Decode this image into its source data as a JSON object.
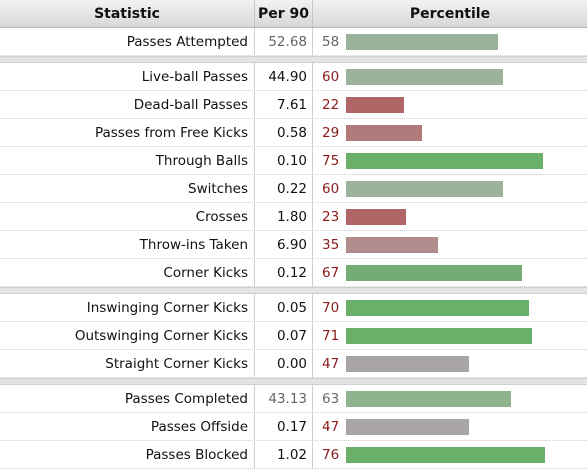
{
  "headers": {
    "statistic": "Statistic",
    "per90": "Per 90",
    "percentile": "Percentile"
  },
  "groups": [
    {
      "rows": [
        {
          "label": "Passes Attempted",
          "per90": "52.68",
          "percentile": 58,
          "per90_color": "#666666",
          "pct_color": "#666666",
          "bar_color": "#9bb39b"
        }
      ]
    },
    {
      "rows": [
        {
          "label": "Live-ball Passes",
          "per90": "44.90",
          "percentile": 60,
          "per90_color": "#111111",
          "pct_color": "#8b1a1a",
          "bar_color": "#9bb39b"
        },
        {
          "label": "Dead-ball Passes",
          "per90": "7.61",
          "percentile": 22,
          "per90_color": "#111111",
          "pct_color": "#8b1a1a",
          "bar_color": "#b06666"
        },
        {
          "label": "Passes from Free Kicks",
          "per90": "0.58",
          "percentile": 29,
          "per90_color": "#111111",
          "pct_color": "#8b1a1a",
          "bar_color": "#b07a7a"
        },
        {
          "label": "Through Balls",
          "per90": "0.10",
          "percentile": 75,
          "per90_color": "#111111",
          "pct_color": "#8b1a1a",
          "bar_color": "#6aaf6a"
        },
        {
          "label": "Switches",
          "per90": "0.22",
          "percentile": 60,
          "per90_color": "#111111",
          "pct_color": "#8b1a1a",
          "bar_color": "#9bb39b"
        },
        {
          "label": "Crosses",
          "per90": "1.80",
          "percentile": 23,
          "per90_color": "#111111",
          "pct_color": "#8b1a1a",
          "bar_color": "#b06666"
        },
        {
          "label": "Throw-ins Taken",
          "per90": "6.90",
          "percentile": 35,
          "per90_color": "#111111",
          "pct_color": "#8b1a1a",
          "bar_color": "#b08c8c"
        },
        {
          "label": "Corner Kicks",
          "per90": "0.12",
          "percentile": 67,
          "per90_color": "#111111",
          "pct_color": "#8b1a1a",
          "bar_color": "#73ad73"
        }
      ]
    },
    {
      "rows": [
        {
          "label": "Inswinging Corner Kicks",
          "per90": "0.05",
          "percentile": 70,
          "per90_color": "#111111",
          "pct_color": "#8b1a1a",
          "bar_color": "#6aaf6a"
        },
        {
          "label": "Outswinging Corner Kicks",
          "per90": "0.07",
          "percentile": 71,
          "per90_color": "#111111",
          "pct_color": "#8b1a1a",
          "bar_color": "#6aaf6a"
        },
        {
          "label": "Straight Corner Kicks",
          "per90": "0.00",
          "percentile": 47,
          "per90_color": "#111111",
          "pct_color": "#8b1a1a",
          "bar_color": "#aaa5a5"
        }
      ]
    },
    {
      "rows": [
        {
          "label": "Passes Completed",
          "per90": "43.13",
          "percentile": 63,
          "per90_color": "#666666",
          "pct_color": "#666666",
          "bar_color": "#8fb38f"
        },
        {
          "label": "Passes Offside",
          "per90": "0.17",
          "percentile": 47,
          "per90_color": "#111111",
          "pct_color": "#8b1a1a",
          "bar_color": "#aaa5a5"
        },
        {
          "label": "Passes Blocked",
          "per90": "1.02",
          "percentile": 76,
          "per90_color": "#111111",
          "pct_color": "#8b1a1a",
          "bar_color": "#6aaf6a"
        }
      ]
    }
  ]
}
